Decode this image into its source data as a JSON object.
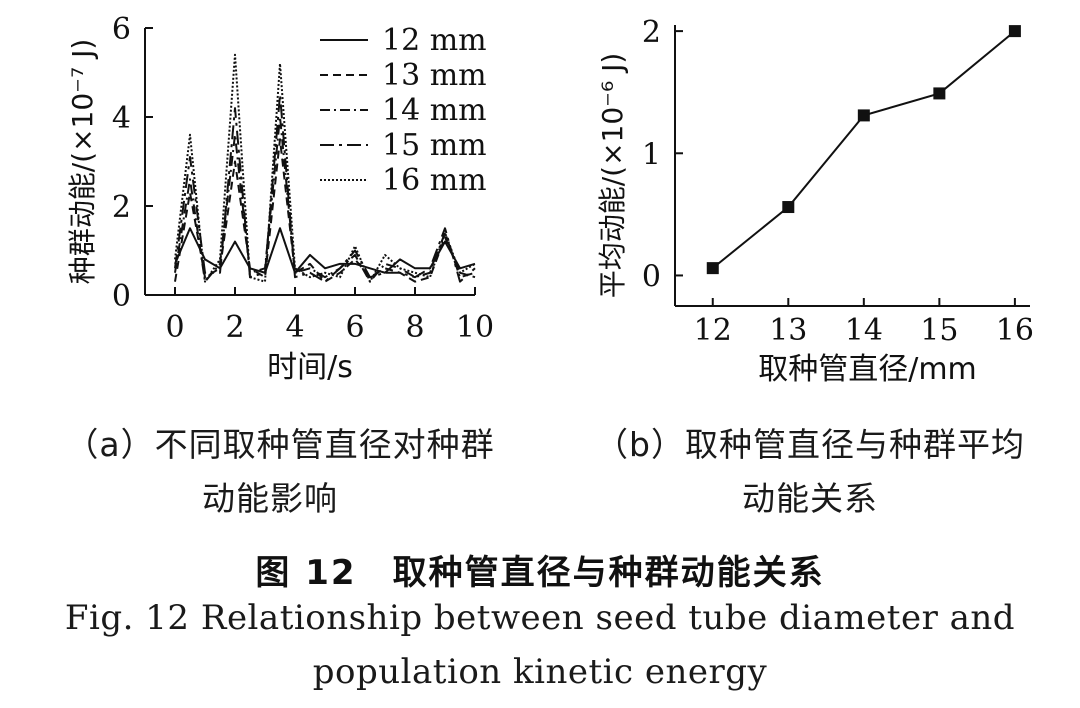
{
  "chart_data": [
    {
      "type": "line",
      "title": "",
      "xlabel": "时间/s",
      "ylabel": "种群动能/(×10⁻⁷ J)",
      "xlim": [
        -1,
        10
      ],
      "ylim": [
        0,
        6
      ],
      "xticks": [
        "0",
        "2",
        "4",
        "6",
        "8",
        "10"
      ],
      "yticks": [
        "0",
        "2",
        "4",
        "6"
      ],
      "legend_position": "top-right",
      "series": [
        {
          "name": "12 mm",
          "dash": "none",
          "x": [
            0,
            0.5,
            1,
            1.5,
            2,
            2.5,
            3,
            3.5,
            4,
            4.5,
            5,
            5.5,
            6,
            6.5,
            7,
            7.5,
            8,
            8.5,
            9,
            9.5,
            10
          ],
          "y": [
            0.7,
            1.5,
            0.8,
            0.6,
            1.2,
            0.6,
            0.5,
            1.5,
            0.5,
            0.9,
            0.6,
            0.7,
            0.7,
            0.6,
            0.5,
            0.8,
            0.6,
            0.6,
            1.2,
            0.6,
            0.7
          ]
        },
        {
          "name": "13 mm",
          "dash": "8,5",
          "x": [
            0,
            0.5,
            1,
            1.5,
            2,
            2.5,
            3,
            3.5,
            4,
            4.5,
            5,
            5.5,
            6,
            6.5,
            7,
            7.5,
            8,
            8.5,
            9,
            9.5,
            10
          ],
          "y": [
            0.3,
            2.3,
            0.4,
            0.6,
            3.0,
            0.6,
            0.4,
            3.5,
            0.5,
            0.7,
            0.3,
            0.5,
            0.8,
            0.4,
            0.6,
            0.5,
            0.3,
            0.4,
            1.3,
            0.5,
            0.4
          ]
        },
        {
          "name": "14 mm",
          "dash": "10,4,2,4",
          "x": [
            0,
            0.5,
            1,
            1.5,
            2,
            2.5,
            3,
            3.5,
            4,
            4.5,
            5,
            5.5,
            6,
            6.5,
            7,
            7.5,
            8,
            8.5,
            9,
            9.5,
            10
          ],
          "y": [
            0.5,
            2.6,
            0.3,
            0.7,
            3.6,
            0.5,
            0.6,
            4.0,
            0.5,
            0.6,
            0.4,
            0.6,
            0.9,
            0.3,
            0.7,
            0.6,
            0.4,
            0.5,
            1.4,
            0.4,
            0.5
          ]
        },
        {
          "name": "15 mm",
          "dash": "14,5,3,5",
          "x": [
            0,
            0.5,
            1,
            1.5,
            2,
            2.5,
            3,
            3.5,
            4,
            4.5,
            5,
            5.5,
            6,
            6.5,
            7,
            7.5,
            8,
            8.5,
            9,
            9.5,
            10
          ],
          "y": [
            0.6,
            3.1,
            0.5,
            0.5,
            4.2,
            0.4,
            0.5,
            4.5,
            0.4,
            0.5,
            0.3,
            0.6,
            1.0,
            0.4,
            0.5,
            0.5,
            0.4,
            0.6,
            1.5,
            0.3,
            0.6
          ]
        },
        {
          "name": "16 mm",
          "dash": "2,2",
          "x": [
            0,
            0.5,
            1,
            1.5,
            2,
            2.5,
            3,
            3.5,
            4,
            4.5,
            5,
            5.5,
            6,
            6.5,
            7,
            7.5,
            8,
            8.5,
            9,
            9.5,
            10
          ],
          "y": [
            0.8,
            3.6,
            0.3,
            0.8,
            5.4,
            0.4,
            0.3,
            5.2,
            0.6,
            0.4,
            0.5,
            0.4,
            1.1,
            0.3,
            0.9,
            0.6,
            0.5,
            0.4,
            1.4,
            0.5,
            0.7
          ]
        }
      ]
    },
    {
      "type": "line",
      "title": "",
      "xlabel": "取种管直径/mm",
      "ylabel": "平均动能/(×10⁻⁶ J)",
      "xlim": [
        11.5,
        16.2
      ],
      "ylim": [
        -0.25,
        2.05
      ],
      "categories": [
        "12",
        "13",
        "14",
        "15",
        "16"
      ],
      "xticks": [
        "12",
        "13",
        "14",
        "15",
        "16"
      ],
      "yticks": [
        "0",
        "1",
        "2"
      ],
      "marker": "square",
      "x": [
        12,
        13,
        14,
        15,
        16
      ],
      "values": [
        0.06,
        0.56,
        1.31,
        1.49,
        2.0
      ]
    }
  ],
  "captions": {
    "sub_a_line1": "（a）不同取种管直径对种群",
    "sub_a_line2": "动能影响",
    "sub_b_line1": "（b）取种管直径与种群平均",
    "sub_b_line2": "动能关系",
    "figure_cn": "图 12　取种管直径与种群动能关系",
    "figure_en_line1": "Fig. 12 Relationship between seed tube diameter and",
    "figure_en_line2": "population kinetic energy"
  },
  "colors": {
    "ink": "#111111"
  }
}
